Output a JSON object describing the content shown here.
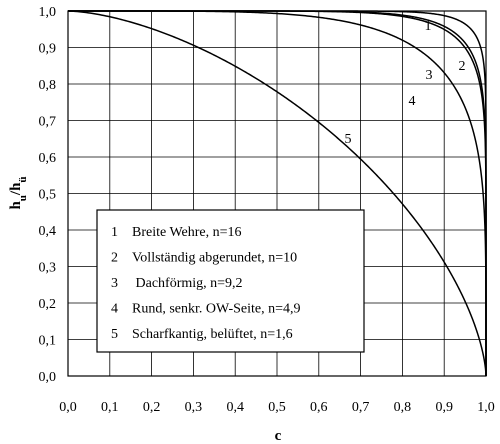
{
  "chart_data": {
    "type": "line",
    "xlabel": "c",
    "ylabel": "hu/hü",
    "ylabel_parts": {
      "main": "h",
      "sub1": "u",
      "slash": "/h",
      "sub2": "ü"
    },
    "xlim": [
      0.0,
      1.0
    ],
    "ylim": [
      0.0,
      1.0
    ],
    "x_ticks": [
      "0,0",
      "0,1",
      "0,2",
      "0,3",
      "0,4",
      "0,5",
      "0,6",
      "0,7",
      "0,8",
      "0,9",
      "1,0"
    ],
    "y_ticks": [
      "0,0",
      "0,1",
      "0,2",
      "0,3",
      "0,4",
      "0,5",
      "0,6",
      "0,7",
      "0,8",
      "0,9",
      "1,0"
    ],
    "grid": true,
    "legend_position": "lower-left",
    "series": [
      {
        "id": "1",
        "n": 16,
        "label": "1",
        "legend": "Breite Wehre, n=16",
        "legend_num": "1"
      },
      {
        "id": "2",
        "n": 10,
        "label": "2",
        "legend": "Vollständig abgerundet, n=10",
        "legend_num": "2"
      },
      {
        "id": "3",
        "n": 9.2,
        "label": "3",
        "legend": " Dachförmig, n=9,2",
        "legend_num": "3"
      },
      {
        "id": "4",
        "n": 4.9,
        "label": "4",
        "legend": "Rund, senkr. OW-Seite, n=4,9",
        "legend_num": "4"
      },
      {
        "id": "5",
        "n": 1.6,
        "label": "5",
        "legend": "Scharfkantig, belüftet, n=1,6",
        "legend_num": "5"
      }
    ]
  }
}
